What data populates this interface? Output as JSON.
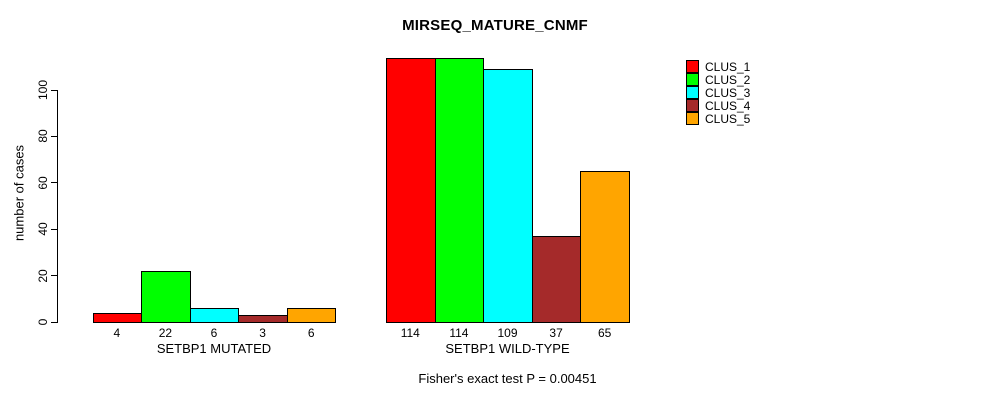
{
  "chart_data": {
    "type": "bar",
    "title": "MIRSEQ_MATURE_CNMF",
    "ylabel": "number of cases",
    "xlabel": "",
    "categories": [
      "SETBP1 MUTATED",
      "SETBP1 WILD-TYPE"
    ],
    "series": [
      {
        "name": "CLUS_1",
        "color": "#ff0000",
        "values": [
          4,
          114
        ]
      },
      {
        "name": "CLUS_2",
        "color": "#00ff00",
        "values": [
          22,
          114
        ]
      },
      {
        "name": "CLUS_3",
        "color": "#00ffff",
        "values": [
          6,
          109
        ]
      },
      {
        "name": "CLUS_4",
        "color": "#a52a2a",
        "values": [
          3,
          37
        ]
      },
      {
        "name": "CLUS_5",
        "color": "#ffa500",
        "values": [
          6,
          65
        ]
      }
    ],
    "bar_value_labels": [
      [
        "4",
        "22",
        "6",
        "3",
        "6"
      ],
      [
        "114",
        "114",
        "109",
        "37",
        "65"
      ]
    ],
    "yticks": [
      0,
      20,
      40,
      60,
      80,
      100
    ],
    "ylim": [
      0,
      116
    ],
    "grid": false,
    "legend_position": "top-right",
    "annotation": "Fisher's exact test P = 0.00451",
    "axis_color": "#000000",
    "bar_border_color": "#000000"
  }
}
